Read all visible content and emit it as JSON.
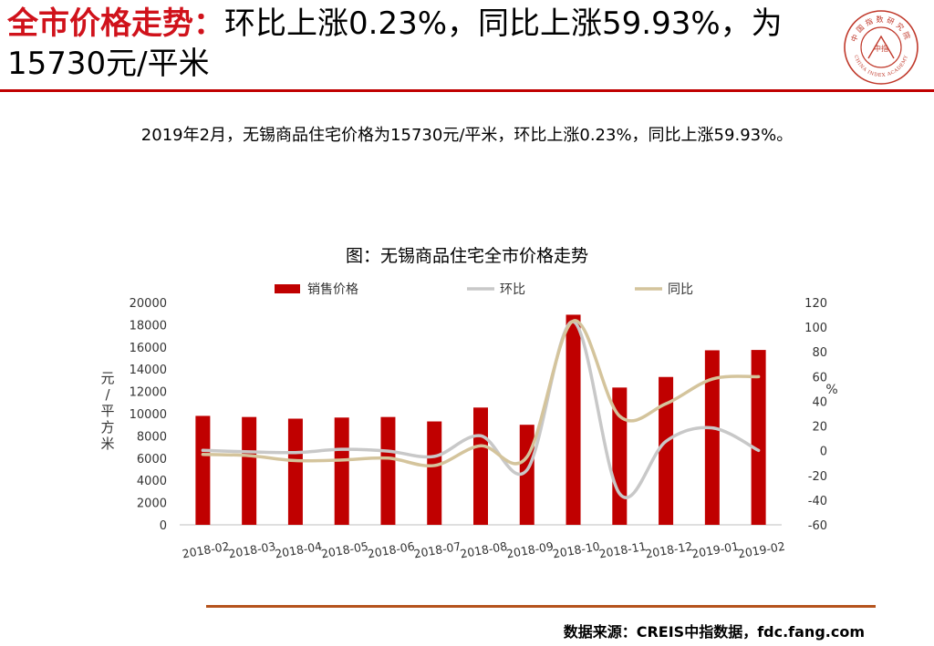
{
  "header": {
    "title_highlight": "全市价格走势：",
    "title_rest": "环比上涨0.23%，同比上涨59.93%，为15730元/平米"
  },
  "logo": {
    "name": "中国指数研究院",
    "english": "CHINA INDEX ACADEMY",
    "center": "中指"
  },
  "summary": "2019年2月，无锡商品住宅价格为15730元/平米，环比上涨0.23%，同比上涨59.93%。",
  "source": "数据来源：CREIS中指数据，fdc.fang.com",
  "colors": {
    "accent": "#d0121b",
    "bar": "#c00000",
    "mom": "#c8c8c8",
    "yoy": "#d4c49c",
    "bottom_rule": "#b5531c"
  },
  "chart_data": {
    "type": "bar",
    "title": "图：无锡商品住宅全市价格走势",
    "categories": [
      "2018-02",
      "2018-03",
      "2018-04",
      "2018-05",
      "2018-06",
      "2018-07",
      "2018-08",
      "2018-09",
      "2018-10",
      "2018-11",
      "2018-12",
      "2019-01",
      "2019-02"
    ],
    "ylabel_left": "元/平方米",
    "ylabel_right": "%",
    "ylim_left": [
      0,
      20000
    ],
    "yticks_left": [
      0,
      2000,
      4000,
      6000,
      8000,
      10000,
      12000,
      14000,
      16000,
      18000,
      20000
    ],
    "ylim_right": [
      -60,
      120
    ],
    "yticks_right": [
      -60,
      -40,
      -20,
      0,
      20,
      40,
      60,
      80,
      100,
      120
    ],
    "legend_position": "top",
    "grid": false,
    "series": [
      {
        "name": "销售价格",
        "type": "bar",
        "axis": "left",
        "values": [
          9800,
          9700,
          9550,
          9650,
          9700,
          9300,
          10550,
          9000,
          18900,
          12350,
          13300,
          15700,
          15730
        ]
      },
      {
        "name": "环比",
        "type": "line",
        "axis": "right",
        "values": [
          0.3,
          -0.9,
          -1.5,
          1.1,
          -0.3,
          -4.6,
          12.1,
          -15.6,
          104.5,
          -34.8,
          7.6,
          18.5,
          0.23
        ]
      },
      {
        "name": "同比",
        "type": "line",
        "axis": "right",
        "values": [
          -3.0,
          -4.0,
          -8.0,
          -7.5,
          -6.0,
          -12.0,
          4.0,
          -5.0,
          105.0,
          28.0,
          38.0,
          58.0,
          59.93
        ]
      }
    ]
  }
}
